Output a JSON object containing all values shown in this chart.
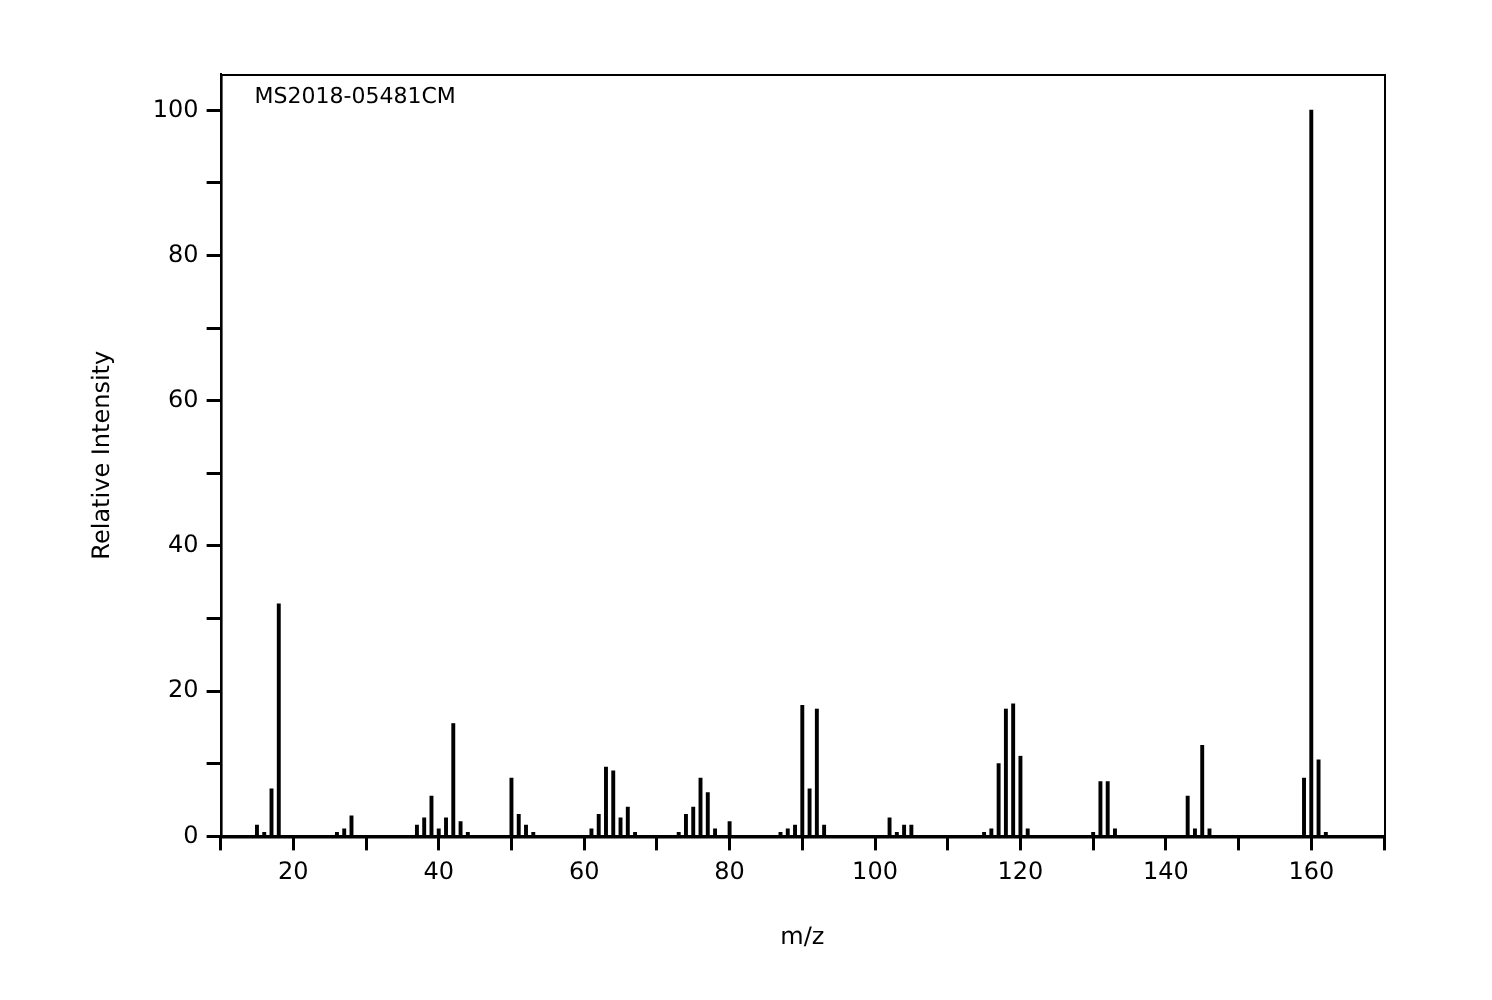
{
  "chart_data": {
    "type": "bar",
    "xlabel": "m/z",
    "ylabel": "Relative Intensity",
    "annotations": [
      "MS2018-05481CM"
    ],
    "x": [
      15,
      16,
      17,
      18,
      26,
      27,
      28,
      37,
      38,
      39,
      40,
      41,
      42,
      43,
      44,
      50,
      51,
      52,
      53,
      61,
      62,
      63,
      64,
      65,
      66,
      67,
      73,
      74,
      75,
      76,
      77,
      78,
      80,
      87,
      88,
      89,
      90,
      91,
      92,
      93,
      102,
      103,
      104,
      105,
      115,
      116,
      117,
      118,
      119,
      120,
      121,
      130,
      131,
      132,
      133,
      143,
      144,
      145,
      146,
      159,
      160,
      161,
      162
    ],
    "series": [
      {
        "color": "#000000",
        "values": [
          1.5,
          0.5,
          6.5,
          32,
          0.5,
          1,
          2.8,
          1.5,
          2.5,
          5.5,
          1,
          2.5,
          15.5,
          2,
          0.5,
          8,
          3,
          1.5,
          0.5,
          1,
          3,
          9.5,
          9,
          2.5,
          4,
          0.5,
          0.5,
          3,
          4,
          8,
          6,
          1,
          2,
          0.5,
          1,
          1.5,
          18,
          6.5,
          17.5,
          1.5,
          2.5,
          0.5,
          1.5,
          1.5,
          0.5,
          1,
          10,
          17.5,
          18.2,
          11,
          1,
          0.5,
          7.5,
          7.5,
          1,
          5.5,
          1,
          12.5,
          1,
          8,
          100,
          10.5,
          0.5
        ]
      }
    ],
    "xlim": [
      10,
      170
    ],
    "ylim": [
      0,
      105
    ],
    "xticks": [
      {
        "value": 10,
        "label": null
      },
      20,
      {
        "value": 30,
        "label": null
      },
      40,
      {
        "value": 50,
        "label": null
      },
      60,
      {
        "value": 70,
        "label": null
      },
      80,
      {
        "value": 90,
        "label": null
      },
      100,
      {
        "value": 110,
        "label": null
      },
      120,
      {
        "value": 130,
        "label": null
      },
      140,
      {
        "value": 150,
        "label": null
      },
      160,
      {
        "value": 170,
        "label": null
      }
    ],
    "yticks": [
      0,
      {
        "value": 10,
        "label": null
      },
      20,
      {
        "value": 30,
        "label": null
      },
      40,
      {
        "value": 50,
        "label": null
      },
      60,
      {
        "value": 70,
        "label": null
      },
      80,
      {
        "value": 90,
        "label": null
      },
      100
    ],
    "grid": false,
    "legend": false
  }
}
